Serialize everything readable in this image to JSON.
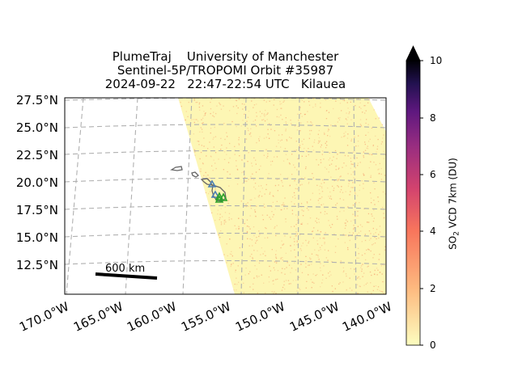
{
  "title": {
    "line1": "PlumeTraj    University of Manchester",
    "line2": "Sentinel-5P/TROPOMI Orbit #35987",
    "line3": "2024-09-22   22:47-22:54 UTC   Kilauea"
  },
  "map": {
    "lat_labels": [
      "27.5°N",
      "25.0°N",
      "22.5°N",
      "20.0°N",
      "17.5°N",
      "15.0°N",
      "12.5°N"
    ],
    "lon_labels": [
      "170.0°W",
      "165.0°W",
      "160.0°W",
      "155.0°W",
      "150.0°W",
      "145.0°W",
      "140.0°W"
    ],
    "scale_bar_label": "600 km",
    "gridlines": true,
    "volcano": "Kilauea"
  },
  "colorbar": {
    "label_prefix": "SO",
    "label_sub": "2",
    "label_suffix": " VCD 7km (DU)",
    "ticks": [
      "0",
      "2",
      "4",
      "6",
      "8",
      "10"
    ],
    "min": 0,
    "max": 10,
    "colormap": "magma_r",
    "extend": "max"
  },
  "colors": {
    "swath_background": "#fdf6b4",
    "noise": "#f5a070",
    "coastline": "#666666",
    "grid": "#b0b0b0",
    "marker_blue": "#4a7fb5",
    "marker_green": "#2ca02c"
  }
}
